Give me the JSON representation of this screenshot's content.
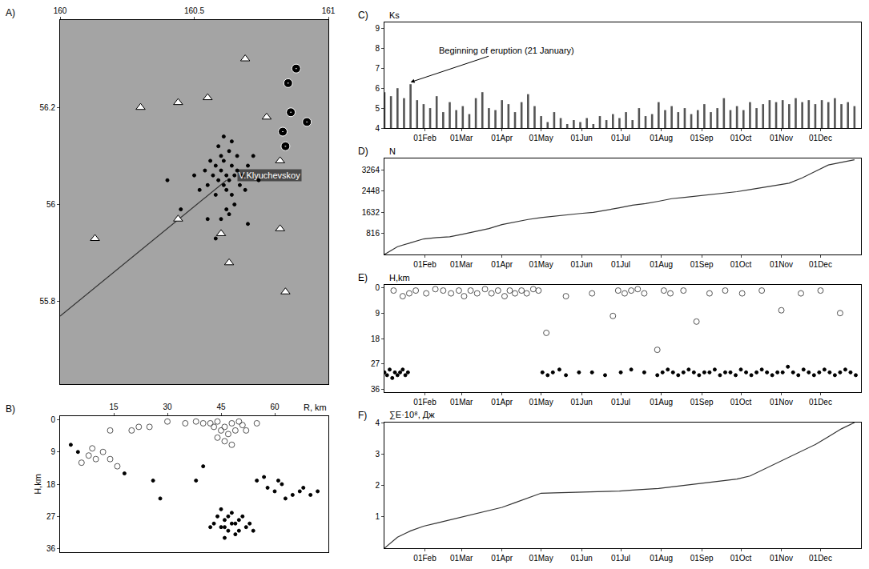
{
  "chart_data": [
    {
      "type": "scatter",
      "title": "A)",
      "xlim": [
        160,
        161
      ],
      "xticks": [
        160,
        160.5,
        161
      ],
      "ylim": [
        55.63,
        56.38
      ],
      "yticks": [
        55.8,
        56,
        56.2
      ],
      "annotations": [
        {
          "text": "V.Klyuchevskoy",
          "x": 160.66,
          "y": 56.06
        }
      ],
      "series": [
        {
          "type": "line",
          "color": "#333333",
          "x": [
            160.0,
            160.62
          ],
          "y": [
            55.77,
            56.05
          ]
        },
        {
          "type": "scatter",
          "marker": "circle",
          "color": "#000000",
          "x": [
            160.6,
            160.62,
            160.64,
            160.63,
            160.65,
            160.66,
            160.61,
            160.59,
            160.67,
            160.62,
            160.64,
            160.58,
            160.6,
            160.57,
            160.68,
            160.63,
            160.55,
            160.56,
            160.66,
            160.61,
            160.58,
            160.62,
            160.6,
            160.63,
            160.65,
            160.59,
            160.54,
            160.7,
            160.69,
            160.64,
            160.52,
            160.55,
            160.72,
            160.5,
            160.61,
            160.74,
            160.4,
            160.45,
            160.7,
            160.58
          ],
          "y": [
            56.07,
            56.06,
            56.08,
            56.05,
            56.06,
            56.07,
            56.09,
            56.05,
            56.04,
            56.03,
            56.02,
            56.08,
            56.1,
            56.06,
            56.06,
            56.11,
            56.04,
            56.09,
            56.1,
            56.04,
            56.02,
            55.99,
            55.97,
            55.98,
            56.0,
            56.12,
            56.07,
            56.08,
            56.03,
            56.13,
            56.03,
            55.97,
            56.1,
            56.06,
            56.14,
            56.05,
            56.05,
            55.99,
            55.96,
            55.93
          ]
        },
        {
          "type": "scatter",
          "marker": "triangle-up",
          "color": "#ffffff",
          "x": [
            160.69,
            160.55,
            160.44,
            160.3,
            160.13,
            160.77,
            160.82,
            160.6,
            160.82,
            160.84,
            160.63,
            160.44
          ],
          "y": [
            56.3,
            56.22,
            56.21,
            56.2,
            55.93,
            56.18,
            56.09,
            55.94,
            55.95,
            55.82,
            55.88,
            55.97
          ]
        },
        {
          "type": "scatter",
          "marker": "circle-dot",
          "color": "#000000",
          "x": [
            160.85,
            160.86,
            160.83,
            160.84,
            160.88,
            160.92
          ],
          "y": [
            56.25,
            56.19,
            56.15,
            56.12,
            56.28,
            56.17
          ]
        }
      ]
    },
    {
      "type": "scatter",
      "title": "B)",
      "xlabel": "R, km",
      "ylabel": "H,km",
      "xlim": [
        0,
        75
      ],
      "xticks": [
        15,
        30,
        45,
        60
      ],
      "ylim": [
        -1,
        37
      ],
      "yticks": [
        0,
        9,
        18,
        27,
        36
      ],
      "series": [
        {
          "type": "scatter",
          "marker": "circle-open",
          "color": "#555555",
          "x": [
            42,
            44,
            46,
            48,
            50,
            45,
            47,
            43,
            49,
            51,
            40,
            38,
            52,
            46,
            48,
            44,
            20,
            22,
            14,
            8,
            10,
            12,
            6,
            14,
            9,
            16,
            30,
            35,
            25,
            55
          ],
          "y": [
            1,
            0.5,
            2,
            1,
            0.5,
            3,
            4,
            2,
            3,
            1.5,
            1,
            0.5,
            3,
            6,
            7,
            5,
            3,
            2,
            3,
            10,
            11,
            9,
            12,
            11,
            8,
            13,
            0.5,
            1,
            2,
            1
          ]
        },
        {
          "type": "scatter",
          "marker": "circle",
          "color": "#000000",
          "x": [
            44,
            46,
            48,
            45,
            47,
            50,
            52,
            49,
            43,
            51,
            46,
            48,
            53,
            45,
            50,
            47,
            42,
            54,
            49,
            46,
            55,
            58,
            60,
            62,
            65,
            67,
            70,
            68,
            63,
            57,
            72,
            61,
            3,
            5,
            28,
            26,
            18,
            40,
            38
          ],
          "y": [
            27,
            28,
            29,
            30,
            31,
            28,
            30,
            32,
            29,
            27,
            33,
            26,
            29,
            25,
            31,
            27,
            30,
            31,
            29,
            30,
            17,
            19,
            20,
            18,
            21,
            20,
            21,
            19,
            22,
            16,
            20,
            17,
            7,
            9,
            22,
            17,
            15,
            13,
            17
          ]
        }
      ]
    },
    {
      "type": "bar",
      "title": "C)",
      "ylabel": "Ks",
      "color": "#555555",
      "xlim": [
        1,
        366
      ],
      "xticks": [
        {
          "value": 32,
          "label": "01Feb"
        },
        {
          "value": 60,
          "label": "01Mar"
        },
        {
          "value": 91,
          "label": "01Apr"
        },
        {
          "value": 121,
          "label": "01May"
        },
        {
          "value": 152,
          "label": "01Jun"
        },
        {
          "value": 182,
          "label": "01Jul"
        },
        {
          "value": 213,
          "label": "01Aug"
        },
        {
          "value": 244,
          "label": "01Sep"
        },
        {
          "value": 274,
          "label": "01Oct"
        },
        {
          "value": 305,
          "label": "01Nov"
        },
        {
          "value": 335,
          "label": "01Dec"
        }
      ],
      "ylim": [
        4,
        9.3
      ],
      "yticks": [
        4,
        5,
        6,
        7,
        8,
        9
      ],
      "annotations": [
        {
          "text": "Beginning of eruption (21 January)",
          "x": 21,
          "y": 6.3
        }
      ],
      "x": [
        1,
        6,
        11,
        16,
        21,
        26,
        31,
        36,
        41,
        46,
        51,
        56,
        61,
        66,
        71,
        76,
        81,
        86,
        91,
        96,
        101,
        106,
        111,
        116,
        121,
        126,
        131,
        136,
        141,
        146,
        151,
        156,
        161,
        166,
        171,
        176,
        181,
        186,
        191,
        196,
        201,
        206,
        211,
        216,
        221,
        226,
        231,
        236,
        241,
        246,
        251,
        256,
        261,
        266,
        271,
        276,
        281,
        286,
        291,
        296,
        301,
        306,
        311,
        316,
        321,
        326,
        331,
        336,
        341,
        346,
        351,
        356,
        361
      ],
      "values": [
        5.8,
        5.6,
        6.0,
        5.5,
        6.2,
        5.4,
        5.2,
        5.0,
        5.6,
        4.8,
        5.3,
        4.9,
        5.1,
        4.7,
        5.5,
        5.8,
        5.0,
        4.9,
        5.4,
        5.2,
        4.8,
        5.3,
        5.7,
        5.1,
        4.6,
        4.3,
        4.8,
        4.5,
        4.2,
        4.4,
        4.3,
        4.5,
        4.2,
        4.6,
        4.4,
        4.7,
        4.5,
        4.8,
        4.4,
        5.0,
        4.6,
        4.7,
        5.3,
        4.9,
        5.1,
        4.8,
        5.0,
        4.7,
        4.9,
        5.2,
        4.8,
        5.0,
        5.5,
        4.9,
        5.1,
        4.9,
        5.3,
        5.0,
        5.2,
        5.4,
        5.3,
        5.4,
        5.2,
        5.5,
        5.3,
        5.4,
        5.2,
        5.4,
        5.3,
        5.5,
        5.2,
        5.3,
        5.1
      ]
    },
    {
      "type": "line",
      "title": "D)",
      "ylabel": "N",
      "color": "#333333",
      "xlim": [
        1,
        366
      ],
      "xticks": [
        {
          "value": 32,
          "label": "01Feb"
        },
        {
          "value": 60,
          "label": "01Mar"
        },
        {
          "value": 91,
          "label": "01Apr"
        },
        {
          "value": 121,
          "label": "01May"
        },
        {
          "value": 152,
          "label": "01Jun"
        },
        {
          "value": 182,
          "label": "01Jul"
        },
        {
          "value": 213,
          "label": "01Aug"
        },
        {
          "value": 244,
          "label": "01Sep"
        },
        {
          "value": 274,
          "label": "01Oct"
        },
        {
          "value": 305,
          "label": "01Nov"
        },
        {
          "value": 335,
          "label": "01Dec"
        }
      ],
      "ylim": [
        0,
        3700
      ],
      "yticks": [
        816,
        1632,
        2448,
        3264
      ],
      "x": [
        1,
        11,
        21,
        31,
        41,
        51,
        61,
        71,
        81,
        91,
        101,
        111,
        121,
        131,
        141,
        151,
        161,
        171,
        181,
        191,
        201,
        211,
        221,
        231,
        241,
        251,
        261,
        271,
        281,
        291,
        301,
        311,
        321,
        331,
        341,
        351,
        361
      ],
      "values": [
        0,
        300,
        450,
        600,
        650,
        680,
        780,
        900,
        1000,
        1150,
        1250,
        1350,
        1420,
        1480,
        1530,
        1580,
        1620,
        1700,
        1800,
        1900,
        1960,
        2050,
        2150,
        2200,
        2250,
        2300,
        2360,
        2420,
        2500,
        2580,
        2650,
        2750,
        2950,
        3200,
        3450,
        3550,
        3650
      ]
    },
    {
      "type": "scatter",
      "title": "E)",
      "ylabel": "H,km",
      "xlim": [
        1,
        366
      ],
      "xticks": [
        {
          "value": 32,
          "label": "01Feb"
        },
        {
          "value": 60,
          "label": "01Mar"
        },
        {
          "value": 91,
          "label": "01Apr"
        },
        {
          "value": 121,
          "label": "01May"
        },
        {
          "value": 152,
          "label": "01Jun"
        },
        {
          "value": 182,
          "label": "01Jul"
        },
        {
          "value": 213,
          "label": "01Aug"
        },
        {
          "value": 244,
          "label": "01Sep"
        },
        {
          "value": 274,
          "label": "01Oct"
        },
        {
          "value": 305,
          "label": "01Nov"
        },
        {
          "value": 335,
          "label": "01Dec"
        }
      ],
      "ylim": [
        -1,
        37
      ],
      "yticks": [
        0,
        9,
        18,
        27,
        36
      ],
      "series": [
        {
          "type": "scatter",
          "marker": "circle-open",
          "color": "#555555",
          "x": [
            8,
            15,
            20,
            25,
            33,
            40,
            46,
            52,
            58,
            62,
            67,
            72,
            78,
            83,
            88,
            93,
            97,
            101,
            106,
            110,
            115,
            119,
            125,
            140,
            160,
            176,
            180,
            185,
            190,
            195,
            200,
            210,
            215,
            220,
            230,
            240,
            250,
            262,
            275,
            290,
            305,
            320,
            335,
            350
          ],
          "y": [
            1,
            3,
            2,
            1,
            2,
            0.5,
            1,
            2,
            1,
            3,
            1,
            2,
            0.5,
            2,
            1,
            3,
            1,
            2,
            1,
            2,
            0.5,
            1,
            16,
            3,
            2,
            10,
            1,
            2,
            1,
            0.5,
            2,
            22,
            1,
            2,
            1,
            12,
            2,
            1,
            2,
            1,
            8,
            2,
            1,
            9
          ]
        },
        {
          "type": "scatter",
          "marker": "circle",
          "color": "#000000",
          "x": [
            1,
            3,
            5,
            7,
            9,
            11,
            13,
            15,
            17,
            19,
            122,
            126,
            130,
            135,
            140,
            150,
            160,
            170,
            182,
            190,
            200,
            210,
            214,
            218,
            222,
            226,
            230,
            234,
            238,
            242,
            246,
            250,
            254,
            258,
            262,
            266,
            270,
            274,
            278,
            282,
            286,
            290,
            294,
            298,
            302,
            306,
            310,
            314,
            318,
            322,
            326,
            330,
            334,
            338,
            342,
            346,
            350,
            354,
            358,
            362
          ],
          "y": [
            30,
            31,
            29,
            32,
            30,
            31,
            30,
            29,
            31,
            30,
            30,
            31,
            30,
            29,
            31,
            30,
            30,
            31,
            30,
            29,
            30,
            31,
            30,
            29,
            30,
            31,
            30,
            29,
            30,
            31,
            30,
            30,
            29,
            31,
            30,
            30,
            31,
            29,
            30,
            31,
            30,
            29,
            30,
            31,
            30,
            30,
            28,
            30,
            31,
            29,
            30,
            31,
            30,
            29,
            30,
            31,
            30,
            29,
            30,
            31
          ]
        }
      ]
    },
    {
      "type": "line",
      "title": "F)",
      "ylabel": "∑E·10⁸, Дж",
      "color": "#333333",
      "xlim": [
        1,
        366
      ],
      "xticks": [
        {
          "value": 32,
          "label": "01Feb"
        },
        {
          "value": 60,
          "label": "01Mar"
        },
        {
          "value": 91,
          "label": "01Apr"
        },
        {
          "value": 121,
          "label": "01May"
        },
        {
          "value": 152,
          "label": "01Jun"
        },
        {
          "value": 182,
          "label": "01Jul"
        },
        {
          "value": 213,
          "label": "01Aug"
        },
        {
          "value": 244,
          "label": "01Sep"
        },
        {
          "value": 274,
          "label": "01Oct"
        },
        {
          "value": 305,
          "label": "01Nov"
        },
        {
          "value": 335,
          "label": "01Dec"
        }
      ],
      "ylim": [
        0,
        4
      ],
      "yticks": [
        1,
        2,
        3,
        4
      ],
      "x": [
        1,
        11,
        21,
        31,
        41,
        51,
        61,
        71,
        81,
        91,
        101,
        111,
        121,
        131,
        141,
        151,
        161,
        171,
        181,
        191,
        201,
        211,
        221,
        231,
        241,
        251,
        261,
        271,
        281,
        291,
        301,
        311,
        321,
        331,
        341,
        351,
        361
      ],
      "values": [
        0,
        0.35,
        0.55,
        0.7,
        0.8,
        0.9,
        1.0,
        1.1,
        1.2,
        1.3,
        1.45,
        1.6,
        1.75,
        1.76,
        1.77,
        1.78,
        1.79,
        1.8,
        1.82,
        1.85,
        1.88,
        1.9,
        1.95,
        2.0,
        2.05,
        2.1,
        2.15,
        2.2,
        2.3,
        2.5,
        2.7,
        2.9,
        3.1,
        3.3,
        3.55,
        3.8,
        4.0
      ]
    }
  ]
}
